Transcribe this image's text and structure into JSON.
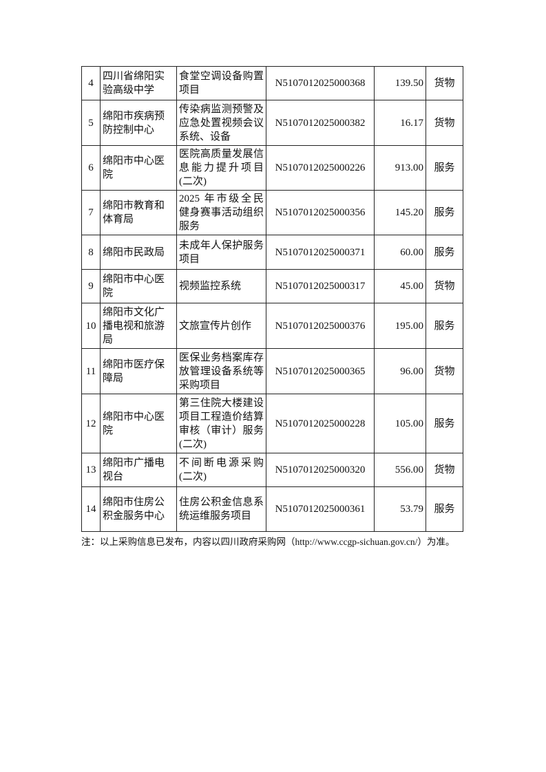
{
  "rows": [
    {
      "no": "4",
      "unit": "四川省绵阳实验高级中学",
      "project": "食堂空调设备购置项目",
      "code": "N5107012025000368",
      "amount": "139.50",
      "type": "货物"
    },
    {
      "no": "5",
      "unit": "绵阳市疾病预防控制中心",
      "project": "传染病监测预警及应急处置视频会议系统、设备",
      "code": "N5107012025000382",
      "amount": "16.17",
      "type": "货物"
    },
    {
      "no": "6",
      "unit": "绵阳市中心医院",
      "project": "医院高质量发展信息能力提升项目(二次)",
      "code": "N5107012025000226",
      "amount": "913.00",
      "type": "服务"
    },
    {
      "no": "7",
      "unit": "绵阳市教育和体育局",
      "project": "2025 年市级全民健身赛事活动组织服务",
      "code": "N5107012025000356",
      "amount": "145.20",
      "type": "服务"
    },
    {
      "no": "8",
      "unit": "绵阳市民政局",
      "project": "未成年人保护服务项目",
      "code": "N5107012025000371",
      "amount": "60.00",
      "type": "服务"
    },
    {
      "no": "9",
      "unit": "绵阳市中心医院",
      "project": "视频监控系统",
      "code": "N5107012025000317",
      "amount": "45.00",
      "type": "货物"
    },
    {
      "no": "10",
      "unit": "绵阳市文化广播电视和旅游局",
      "project": "文旅宣传片创作",
      "code": "N5107012025000376",
      "amount": "195.00",
      "type": "服务"
    },
    {
      "no": "11",
      "unit": "绵阳市医疗保障局",
      "project": "医保业务档案库存放管理设备系统等采购项目",
      "code": "N5107012025000365",
      "amount": "96.00",
      "type": "货物"
    },
    {
      "no": "12",
      "unit": "绵阳市中心医院",
      "project": "第三住院大楼建设项目工程造价结算审核（审计）服务(二次)",
      "code": "N5107012025000228",
      "amount": "105.00",
      "type": "服务"
    },
    {
      "no": "13",
      "unit": "绵阳市广播电视台",
      "project": "不间断电源采购(二次)",
      "code": "N5107012025000320",
      "amount": "556.00",
      "type": "货物"
    },
    {
      "no": "14",
      "unit": "绵阳市住房公积金服务中心",
      "project": "住房公积金信息系统运维服务项目",
      "code": "N5107012025000361",
      "amount": "53.79",
      "type": "服务"
    }
  ],
  "note": "注：以上采购信息已发布，内容以四川政府采购网（http://www.ccgp-sichuan.gov.cn/）为准。"
}
